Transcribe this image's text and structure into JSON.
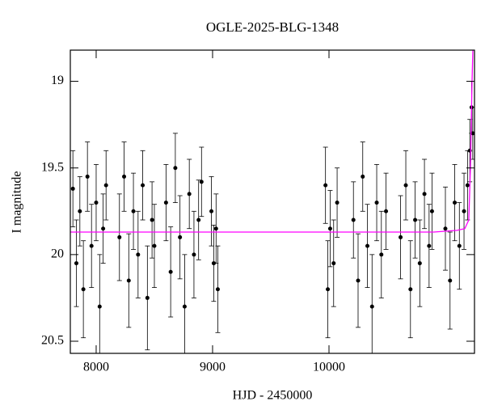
{
  "chart_data": {
    "type": "scatter",
    "title": "OGLE-2025-BLG-1348",
    "x_label": "HJD - 2450000",
    "y_label": "I magnitude",
    "xlim": [
      7778,
      11250
    ],
    "ylim": [
      20.57,
      18.82
    ],
    "xticks": [
      8000,
      9000,
      10000
    ],
    "yticks": [
      19,
      19.5,
      20,
      20.5
    ],
    "series": [
      {
        "type": "scatter",
        "color": "#000000",
        "x": [
          7800,
          7830,
          7860,
          7890,
          7925,
          7960,
          8000,
          8030,
          8060,
          8085,
          8200,
          8240,
          8280,
          8320,
          8360,
          8400,
          8440,
          8480,
          8500,
          8600,
          8640,
          8680,
          8720,
          8760,
          8800,
          8840,
          8880,
          8905,
          8990,
          9010,
          9030,
          9045,
          9970,
          9990,
          10010,
          10040,
          10070,
          10210,
          10250,
          10290,
          10330,
          10370,
          10410,
          10450,
          10490,
          10615,
          10660,
          10700,
          10740,
          10780,
          10820,
          10860,
          10885,
          11000,
          11040,
          11080,
          11120,
          11160,
          11190,
          11210,
          11225,
          11235
        ],
        "values": [
          19.62,
          20.05,
          19.75,
          20.2,
          19.55,
          19.95,
          19.7,
          20.3,
          19.85,
          19.6,
          19.9,
          19.55,
          20.15,
          19.75,
          20.0,
          19.6,
          20.25,
          19.8,
          19.95,
          19.7,
          20.1,
          19.5,
          19.9,
          20.3,
          19.65,
          20.0,
          19.8,
          19.58,
          19.75,
          20.05,
          19.85,
          20.2,
          19.6,
          20.2,
          19.85,
          20.05,
          19.7,
          19.8,
          20.15,
          19.55,
          19.95,
          20.3,
          19.7,
          20.0,
          19.75,
          19.9,
          19.6,
          20.2,
          19.8,
          20.05,
          19.65,
          19.95,
          19.75,
          19.85,
          20.15,
          19.7,
          19.95,
          19.75,
          19.6,
          19.4,
          19.15,
          19.3
        ],
        "errors": [
          0.22,
          0.25,
          0.2,
          0.28,
          0.2,
          0.24,
          0.22,
          0.3,
          0.2,
          0.2,
          0.25,
          0.2,
          0.27,
          0.22,
          0.25,
          0.2,
          0.3,
          0.22,
          0.24,
          0.22,
          0.26,
          0.2,
          0.24,
          0.3,
          0.2,
          0.25,
          0.23,
          0.2,
          0.2,
          0.22,
          0.2,
          0.25,
          0.22,
          0.28,
          0.22,
          0.25,
          0.2,
          0.22,
          0.27,
          0.2,
          0.24,
          0.3,
          0.22,
          0.25,
          0.22,
          0.24,
          0.2,
          0.28,
          0.22,
          0.25,
          0.2,
          0.24,
          0.22,
          0.24,
          0.28,
          0.22,
          0.25,
          0.22,
          0.2,
          0.18,
          0.15,
          0.15
        ]
      },
      {
        "type": "line",
        "color": "#ff00ff",
        "x": [
          7778,
          10900,
          11100,
          11167,
          11201,
          11215,
          11229,
          11236
        ],
        "values": [
          19.87,
          19.87,
          19.86,
          19.85,
          19.8,
          19.5,
          19.0,
          18.82
        ]
      }
    ]
  }
}
